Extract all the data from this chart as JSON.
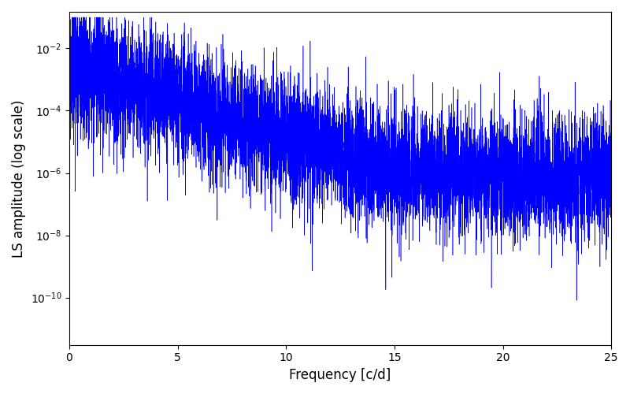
{
  "freq_min": 0,
  "freq_max": 25,
  "ylim_min": 3e-12,
  "ylim_max": 0.15,
  "line_color": "#0000ff",
  "xlabel": "Frequency [c/d]",
  "ylabel": "LS amplitude (log scale)",
  "background_color": "#ffffff",
  "xticks": [
    0,
    5,
    10,
    15,
    20,
    25
  ],
  "figsize": [
    8.0,
    5.0
  ],
  "dpi": 100,
  "n_points": 8000,
  "random_seed": 17,
  "env_A": 0.003,
  "env_decay": 0.55,
  "env_floor": 8e-07,
  "noise_sigma": 2.2,
  "null_freq": 19.95,
  "null_depth": 1e-08
}
